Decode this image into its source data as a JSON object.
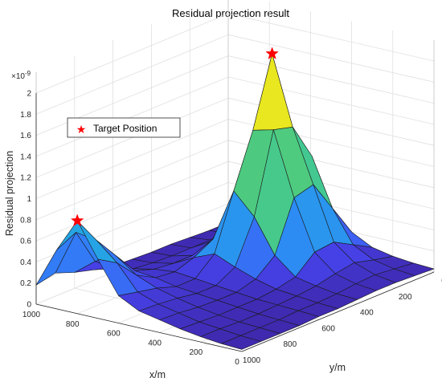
{
  "chart_data": {
    "type": "surface3d",
    "title": "Residual projection result",
    "xlabel": "x/m",
    "ylabel": "y/m",
    "zlabel": "Residual projection",
    "z_exponent_label": "×10",
    "z_exponent_value": "-9",
    "xlim": [
      0,
      1000
    ],
    "ylim": [
      0,
      1000
    ],
    "zlim": [
      0,
      2
    ],
    "x_ticks": [
      "0",
      "200",
      "400",
      "600",
      "800",
      "1000"
    ],
    "y_ticks": [
      "0",
      "200",
      "400",
      "600",
      "800",
      "1000"
    ],
    "z_ticks": [
      "0",
      "0.2",
      "0.4",
      "0.6",
      "0.8",
      "1",
      "1.2",
      "1.4",
      "1.6",
      "1.8",
      "2"
    ],
    "x": [
      1000,
      900,
      800,
      700,
      600,
      500,
      400,
      300,
      200,
      100,
      0
    ],
    "y": [
      1000,
      900,
      800,
      700,
      600,
      500,
      400,
      300,
      200,
      100,
      0
    ],
    "z": [
      [
        0.18,
        0.56,
        0.88,
        0.56,
        0.26,
        0.16,
        0.12,
        0.08,
        0.05,
        0.03,
        0.02
      ],
      [
        0.22,
        0.65,
        0.62,
        0.45,
        0.22,
        0.15,
        0.11,
        0.07,
        0.05,
        0.03,
        0.02
      ],
      [
        0.15,
        0.3,
        0.4,
        0.26,
        0.18,
        0.13,
        0.09,
        0.06,
        0.04,
        0.03,
        0.02
      ],
      [
        0.1,
        0.16,
        0.18,
        0.16,
        0.12,
        0.1,
        0.08,
        0.06,
        0.04,
        0.03,
        0.02
      ],
      [
        0.06,
        0.08,
        0.12,
        0.14,
        0.12,
        0.1,
        0.08,
        0.06,
        0.05,
        0.04,
        0.03
      ],
      [
        0.05,
        0.06,
        0.1,
        0.2,
        0.28,
        0.2,
        0.13,
        0.08,
        0.06,
        0.04,
        0.03
      ],
      [
        0.04,
        0.05,
        0.1,
        0.3,
        0.8,
        0.6,
        0.28,
        0.12,
        0.08,
        0.05,
        0.04
      ],
      [
        0.04,
        0.05,
        0.16,
        0.6,
        1.3,
        1.35,
        0.75,
        0.28,
        0.12,
        0.07,
        0.05
      ],
      [
        0.03,
        0.05,
        0.2,
        0.82,
        1.95,
        1.3,
        0.8,
        0.3,
        0.15,
        0.08,
        0.05
      ],
      [
        0.02,
        0.04,
        0.12,
        0.4,
        1.0,
        0.95,
        0.5,
        0.2,
        0.1,
        0.06,
        0.04
      ],
      [
        0.02,
        0.03,
        0.06,
        0.12,
        0.28,
        0.3,
        0.2,
        0.1,
        0.06,
        0.04,
        0.03
      ]
    ],
    "colormap": [
      "#3e26a8",
      "#4745f0",
      "#2e87f7",
      "#1fbdd4",
      "#52cc77",
      "#cdc431",
      "#f9fb15"
    ],
    "targets": [
      {
        "x": 800,
        "y": 1000,
        "z": 0.88
      },
      {
        "x": 600,
        "y": 200,
        "z": 1.95
      }
    ],
    "legend": {
      "label": "Target Position",
      "position": "upper-left",
      "marker_color": "#ff0000"
    },
    "grid": true,
    "box": true
  }
}
